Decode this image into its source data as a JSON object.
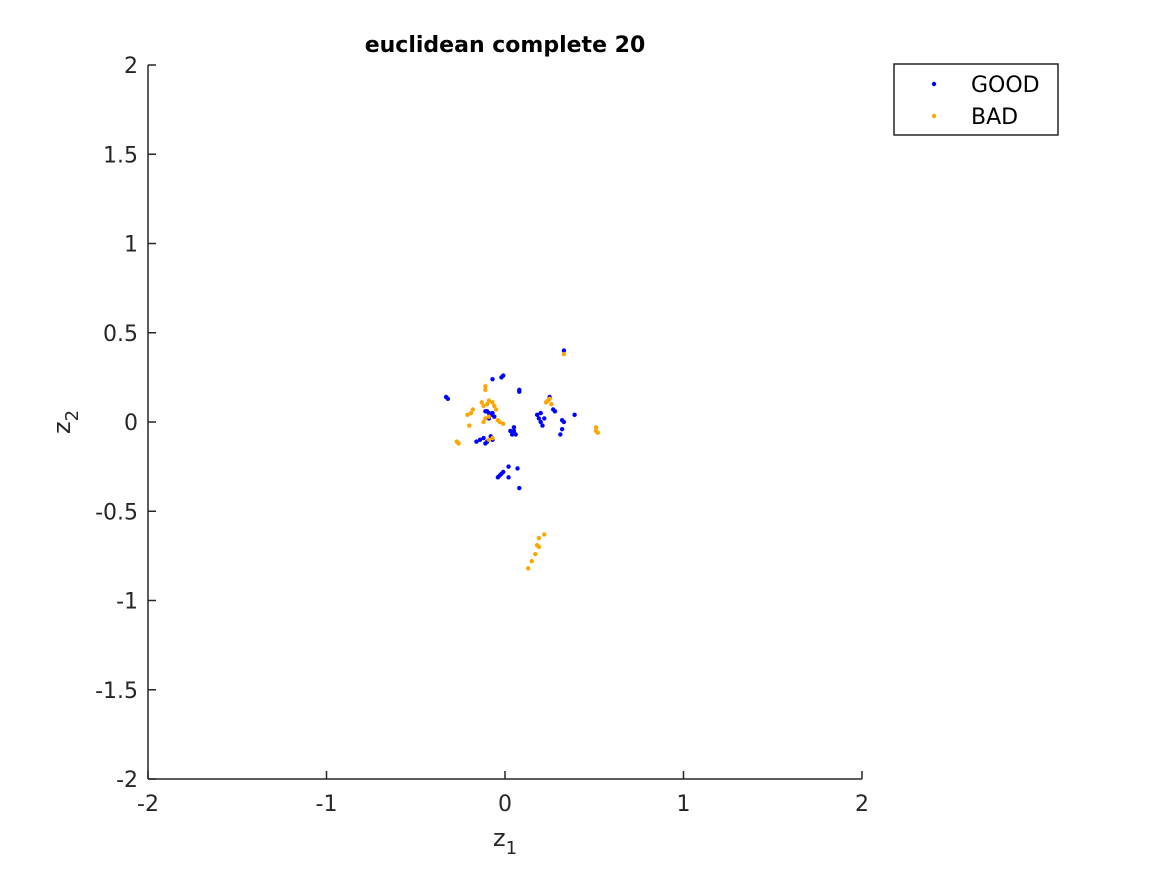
{
  "chart_data": {
    "type": "scatter",
    "title": "euclidean complete 20",
    "xlabel": "z",
    "xlabel_sub": "1",
    "ylabel": "z",
    "ylabel_sub": "2",
    "xlim": [
      -2,
      2
    ],
    "ylim": [
      -2,
      2
    ],
    "xticks": [
      -2,
      -1,
      0,
      1,
      2
    ],
    "xtick_labels": [
      "-2",
      "-1",
      "0",
      "1",
      "2"
    ],
    "yticks": [
      -2,
      -1.5,
      -1,
      -0.5,
      0,
      0.5,
      1,
      1.5,
      2
    ],
    "ytick_labels": [
      "-2",
      "-1.5",
      "-1",
      "-0.5",
      "0",
      "0.5",
      "1",
      "1.5",
      "2"
    ],
    "grid": false,
    "legend_position": "top-right",
    "series": [
      {
        "name": "GOOD",
        "color": "#0000ff",
        "points": [
          [
            -0.33,
            0.14
          ],
          [
            -0.32,
            0.13
          ],
          [
            -0.07,
            0.24
          ],
          [
            -0.02,
            0.25
          ],
          [
            -0.01,
            0.26
          ],
          [
            0.08,
            0.18
          ],
          [
            0.08,
            0.17
          ],
          [
            0.33,
            0.4
          ],
          [
            0.25,
            0.14
          ],
          [
            -0.11,
            0.06
          ],
          [
            -0.09,
            0.05
          ],
          [
            -0.08,
            0.04
          ],
          [
            -0.07,
            0.05
          ],
          [
            -0.06,
            0.03
          ],
          [
            -0.09,
            0.02
          ],
          [
            -0.1,
            0.06
          ],
          [
            -0.12,
            -0.09
          ],
          [
            -0.14,
            -0.1
          ],
          [
            -0.16,
            -0.11
          ],
          [
            -0.11,
            -0.12
          ],
          [
            -0.1,
            -0.11
          ],
          [
            -0.08,
            -0.08
          ],
          [
            -0.07,
            -0.1
          ],
          [
            0.03,
            -0.05
          ],
          [
            0.04,
            -0.07
          ],
          [
            0.05,
            -0.03
          ],
          [
            0.06,
            -0.07
          ],
          [
            0.05,
            -0.05
          ],
          [
            0.18,
            0.04
          ],
          [
            0.19,
            0.02
          ],
          [
            0.2,
            0.0
          ],
          [
            0.21,
            -0.02
          ],
          [
            0.2,
            0.05
          ],
          [
            0.22,
            0.02
          ],
          [
            0.27,
            0.07
          ],
          [
            0.28,
            0.06
          ],
          [
            0.32,
            0.01
          ],
          [
            0.33,
            0.0
          ],
          [
            0.32,
            -0.04
          ],
          [
            0.31,
            -0.07
          ],
          [
            0.39,
            0.04
          ],
          [
            -0.04,
            -0.31
          ],
          [
            -0.03,
            -0.3
          ],
          [
            -0.02,
            -0.29
          ],
          [
            -0.01,
            -0.28
          ],
          [
            0.02,
            -0.31
          ],
          [
            0.02,
            -0.25
          ],
          [
            0.07,
            -0.26
          ],
          [
            0.08,
            -0.37
          ]
        ]
      },
      {
        "name": "BAD",
        "color": "#ffa500",
        "points": [
          [
            0.33,
            0.38
          ],
          [
            -0.11,
            0.2
          ],
          [
            -0.11,
            0.18
          ],
          [
            -0.09,
            0.12
          ],
          [
            -0.1,
            0.1
          ],
          [
            -0.13,
            0.11
          ],
          [
            -0.12,
            0.09
          ],
          [
            -0.07,
            0.11
          ],
          [
            -0.06,
            0.09
          ],
          [
            -0.05,
            0.07
          ],
          [
            -0.18,
            0.07
          ],
          [
            -0.19,
            0.05
          ],
          [
            -0.21,
            0.04
          ],
          [
            -0.2,
            -0.02
          ],
          [
            -0.12,
            0.0
          ],
          [
            -0.11,
            0.02
          ],
          [
            -0.09,
            0.03
          ],
          [
            -0.04,
            0.01
          ],
          [
            -0.03,
            0.0
          ],
          [
            -0.01,
            -0.01
          ],
          [
            -0.27,
            -0.11
          ],
          [
            -0.26,
            -0.12
          ],
          [
            -0.09,
            -0.1
          ],
          [
            -0.07,
            -0.09
          ],
          [
            0.23,
            0.11
          ],
          [
            0.24,
            0.12
          ],
          [
            0.26,
            0.1
          ],
          [
            0.25,
            0.13
          ],
          [
            0.51,
            -0.03
          ],
          [
            0.51,
            -0.05
          ],
          [
            0.52,
            -0.06
          ],
          [
            0.22,
            -0.63
          ],
          [
            0.19,
            -0.65
          ],
          [
            0.18,
            -0.69
          ],
          [
            0.19,
            -0.7
          ],
          [
            0.17,
            -0.74
          ],
          [
            0.15,
            -0.78
          ],
          [
            0.13,
            -0.82
          ]
        ]
      }
    ]
  }
}
